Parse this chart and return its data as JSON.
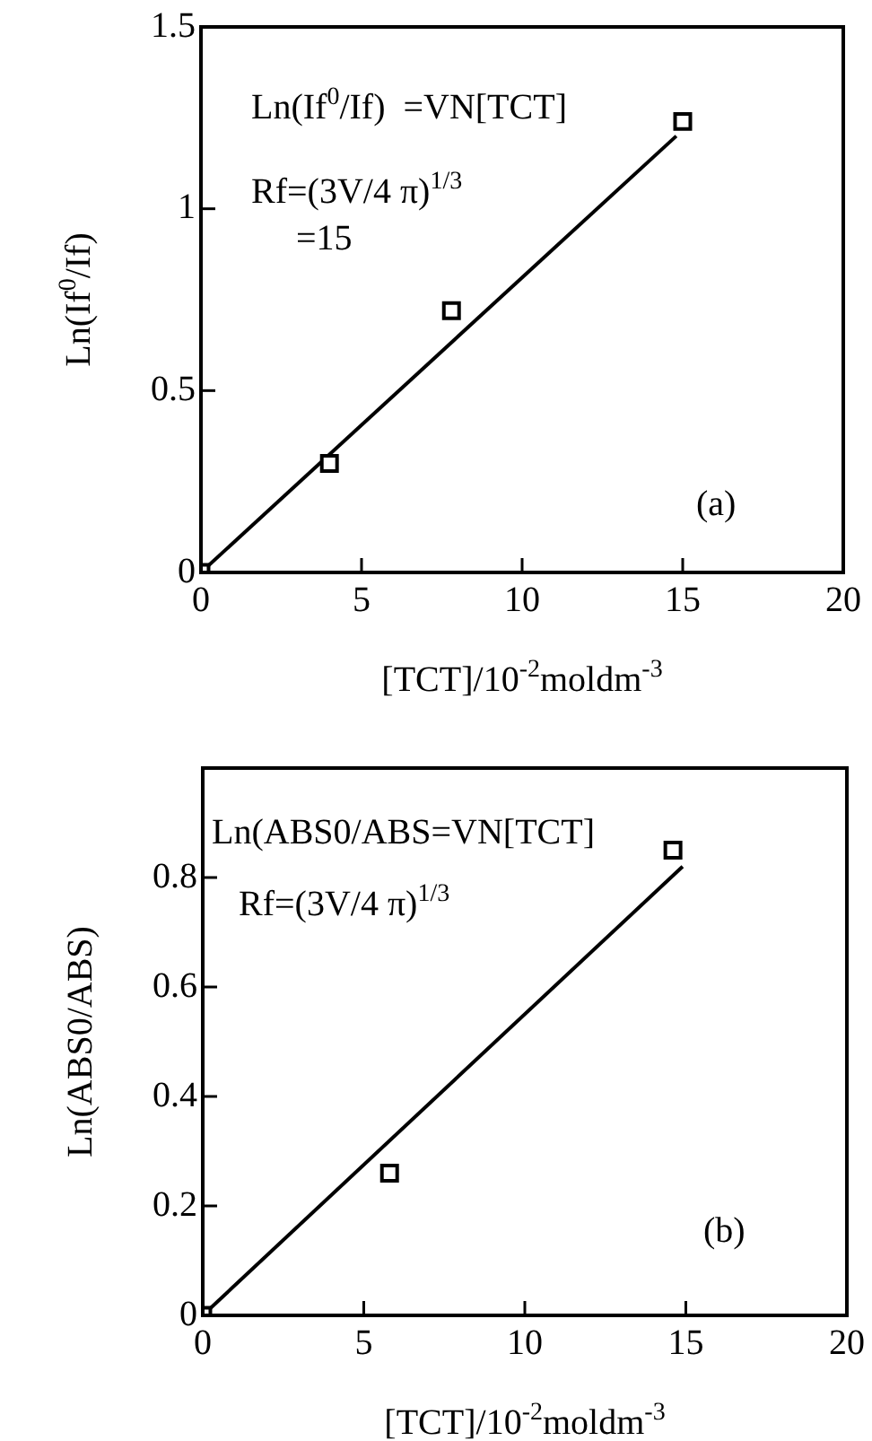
{
  "chart_data": [
    {
      "type": "scatter",
      "xlabel": "[TCT]/10$^{-2}$moldm$^{-3}$",
      "ylabel": "Ln(If$^{0}$/If)",
      "annotations": [
        "Ln(If$^{0}$/If)  =VN[TCT]",
        "Rf=(3V/4 π)$^{1/3}$",
        "=15",
        "(a)"
      ],
      "xlim": [
        0,
        20
      ],
      "xticks": [
        0,
        5,
        10,
        15,
        20
      ],
      "ylim": [
        0,
        1.5
      ],
      "yticks": [
        0,
        0.5,
        1,
        1.5
      ],
      "marker": "square",
      "grid": false,
      "legend": false,
      "series": [
        {
          "type": "scatter",
          "color": "#000000",
          "x": [
            0,
            4,
            7.8,
            15
          ],
          "values": [
            0,
            0.3,
            0.72,
            1.24
          ]
        },
        {
          "type": "line",
          "color": "#000000",
          "marker": "none",
          "x": [
            0,
            14.8
          ],
          "values": [
            0,
            1.2
          ]
        }
      ]
    },
    {
      "type": "scatter",
      "xlabel": "[TCT]/10$^{-2}$moldm$^{-3}$",
      "ylabel": "Ln(ABS0/ABS)",
      "annotations": [
        "Ln(ABS0/ABS=VN[TCT]",
        "Rf=(3V/4 π)$^{1/3}$",
        "(b)"
      ],
      "xlim": [
        0,
        20
      ],
      "xticks": [
        0,
        5,
        10,
        15,
        20
      ],
      "ylim": [
        0,
        1.0
      ],
      "yticks": [
        0,
        0.2,
        0.4,
        0.6,
        0.8
      ],
      "marker": "square",
      "grid": false,
      "legend": false,
      "series": [
        {
          "type": "scatter",
          "color": "#000000",
          "x": [
            0,
            5.8,
            14.6
          ],
          "values": [
            0,
            0.26,
            0.85
          ]
        },
        {
          "type": "line",
          "color": "#000000",
          "marker": "none",
          "x": [
            0,
            14.9
          ],
          "values": [
            0,
            0.82
          ]
        }
      ]
    }
  ]
}
